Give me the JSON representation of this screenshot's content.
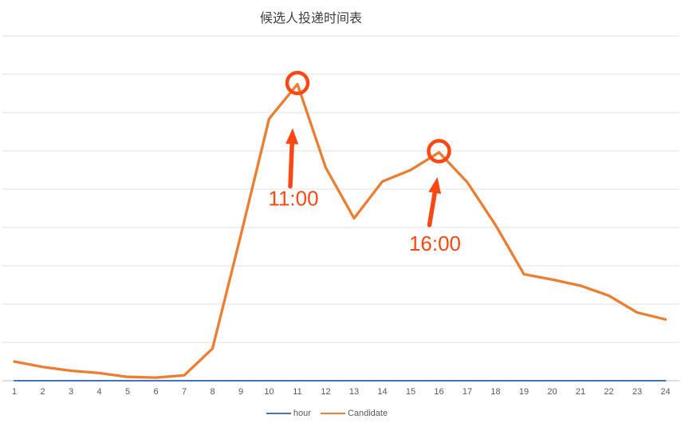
{
  "chart_data": {
    "type": "line",
    "title": "候选人投递时间表",
    "xlabel": "",
    "ylabel": "",
    "x": [
      1,
      2,
      3,
      4,
      5,
      6,
      7,
      8,
      9,
      10,
      11,
      12,
      13,
      14,
      15,
      16,
      17,
      18,
      19,
      20,
      21,
      22,
      23,
      24
    ],
    "ylim": [
      0,
      450
    ],
    "gridline_step": 50,
    "grid": true,
    "legend_position": "bottom",
    "series": [
      {
        "name": "hour",
        "color": "#4472C4",
        "values": [
          0,
          0,
          0,
          0,
          0,
          0,
          0,
          0,
          0,
          0,
          0,
          0,
          0,
          0,
          0,
          0,
          0,
          0,
          0,
          0,
          0,
          0,
          0,
          0
        ]
      },
      {
        "name": "Candidate",
        "color": "#ED7D31",
        "values": [
          25,
          18,
          13,
          10,
          5,
          4,
          7,
          42,
          190,
          342,
          387,
          278,
          212,
          260,
          275,
          298,
          259,
          203,
          139,
          132,
          124,
          111,
          89,
          80
        ]
      }
    ],
    "annotations": [
      {
        "hour": 11,
        "label": "11:00"
      },
      {
        "hour": 16,
        "label": "16:00"
      }
    ]
  },
  "colors": {
    "hour_line": "#4472C4",
    "candidate_line": "#ED7D31",
    "annotation": "#FF4713",
    "gridline": "#E2E2E2",
    "axis": "#BFBFBF",
    "tick_text": "#595959",
    "title_text": "#3F3F3F"
  }
}
